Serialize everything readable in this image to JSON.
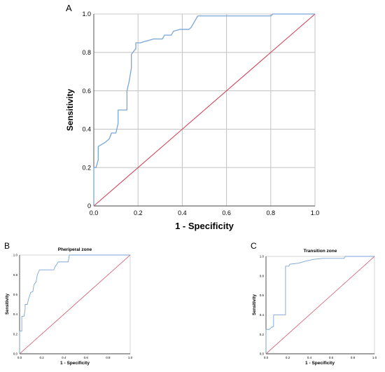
{
  "figure": {
    "ref_line_color": "#d0435a",
    "curve_color": "#7aa6d8",
    "grid_color": "#c8c8c8"
  },
  "chart_data": [
    {
      "id": "A",
      "panel_label": "A",
      "type": "line",
      "title": "",
      "xlabel": "1 - Specificity",
      "ylabel": "Sensitivity",
      "xlim": [
        0,
        1
      ],
      "ylim": [
        0,
        1
      ],
      "xticks": [
        "0.0",
        "0.2",
        "0.4",
        "0.6",
        "0.8",
        "1.0"
      ],
      "yticks": [
        "0",
        "0.2",
        "0.4",
        "0.6",
        "0.8",
        "1.0"
      ],
      "grid": true,
      "series": [
        {
          "points": [
            [
              0,
              0
            ],
            [
              0,
              0.2
            ],
            [
              0.01,
              0.2
            ],
            [
              0.02,
              0.24
            ],
            [
              0.02,
              0.31
            ],
            [
              0.05,
              0.33
            ],
            [
              0.07,
              0.35
            ],
            [
              0.08,
              0.38
            ],
            [
              0.1,
              0.38
            ],
            [
              0.11,
              0.43
            ],
            [
              0.11,
              0.5
            ],
            [
              0.15,
              0.5
            ],
            [
              0.15,
              0.6
            ],
            [
              0.16,
              0.65
            ],
            [
              0.17,
              0.72
            ],
            [
              0.17,
              0.79
            ],
            [
              0.19,
              0.82
            ],
            [
              0.19,
              0.85
            ],
            [
              0.21,
              0.85
            ],
            [
              0.24,
              0.86
            ],
            [
              0.27,
              0.87
            ],
            [
              0.31,
              0.87
            ],
            [
              0.32,
              0.89
            ],
            [
              0.35,
              0.89
            ],
            [
              0.36,
              0.91
            ],
            [
              0.39,
              0.92
            ],
            [
              0.43,
              0.92
            ],
            [
              0.44,
              0.93
            ],
            [
              0.45,
              0.95
            ],
            [
              0.46,
              0.97
            ],
            [
              0.47,
              0.99
            ],
            [
              0.8,
              0.99
            ],
            [
              0.81,
              1
            ],
            [
              1,
              1
            ]
          ]
        },
        {
          "points": [
            [
              0,
              0
            ],
            [
              1,
              1
            ]
          ]
        }
      ]
    },
    {
      "id": "B",
      "panel_label": "B",
      "type": "line",
      "title": "Pheriperal zone",
      "xlabel": "1 - Specificity",
      "ylabel": "Sensitivity",
      "xlim": [
        0,
        1
      ],
      "ylim": [
        0,
        1
      ],
      "xticks": [
        "0.0",
        "0.2",
        "0.4",
        "0.6",
        "0.8",
        "1.0"
      ],
      "yticks": [
        "0.0",
        "0.2",
        "0.4",
        "0.6",
        "0.8",
        "1.0"
      ],
      "grid": false,
      "series": [
        {
          "points": [
            [
              0,
              0
            ],
            [
              0,
              0.23
            ],
            [
              0.02,
              0.23
            ],
            [
              0.02,
              0.38
            ],
            [
              0.04,
              0.38
            ],
            [
              0.05,
              0.45
            ],
            [
              0.05,
              0.5
            ],
            [
              0.07,
              0.5
            ],
            [
              0.08,
              0.55
            ],
            [
              0.1,
              0.62
            ],
            [
              0.12,
              0.63
            ],
            [
              0.13,
              0.7
            ],
            [
              0.15,
              0.73
            ],
            [
              0.16,
              0.8
            ],
            [
              0.18,
              0.85
            ],
            [
              0.31,
              0.85
            ],
            [
              0.32,
              0.88
            ],
            [
              0.35,
              0.93
            ],
            [
              0.44,
              0.93
            ],
            [
              0.45,
              1
            ],
            [
              1,
              1
            ]
          ]
        },
        {
          "points": [
            [
              0,
              0
            ],
            [
              1,
              1
            ]
          ]
        }
      ]
    },
    {
      "id": "C",
      "panel_label": "C",
      "type": "line",
      "title": "Transition zone",
      "xlabel": "1 - Specificity",
      "ylabel": "Sensitivity",
      "xlim": [
        0,
        1
      ],
      "ylim": [
        0,
        1
      ],
      "xticks": [
        "0.0",
        "0.2",
        "0.4",
        "0.6",
        "0.8",
        "1.0"
      ],
      "yticks": [
        "0.0",
        "0.2",
        "0.4",
        "0.6",
        "0.8",
        "1.0"
      ],
      "grid": false,
      "series": [
        {
          "points": [
            [
              0,
              0
            ],
            [
              0,
              0.25
            ],
            [
              0.03,
              0.25
            ],
            [
              0.05,
              0.27
            ],
            [
              0.07,
              0.28
            ],
            [
              0.07,
              0.4
            ],
            [
              0.18,
              0.4
            ],
            [
              0.18,
              0.9
            ],
            [
              0.21,
              0.9
            ],
            [
              0.22,
              0.92
            ],
            [
              0.3,
              0.93
            ],
            [
              0.36,
              0.95
            ],
            [
              0.44,
              0.97
            ],
            [
              0.52,
              0.98
            ],
            [
              0.72,
              0.98
            ],
            [
              0.73,
              1
            ],
            [
              1,
              1
            ]
          ]
        },
        {
          "points": [
            [
              0,
              0
            ],
            [
              1,
              1
            ]
          ]
        }
      ]
    }
  ]
}
